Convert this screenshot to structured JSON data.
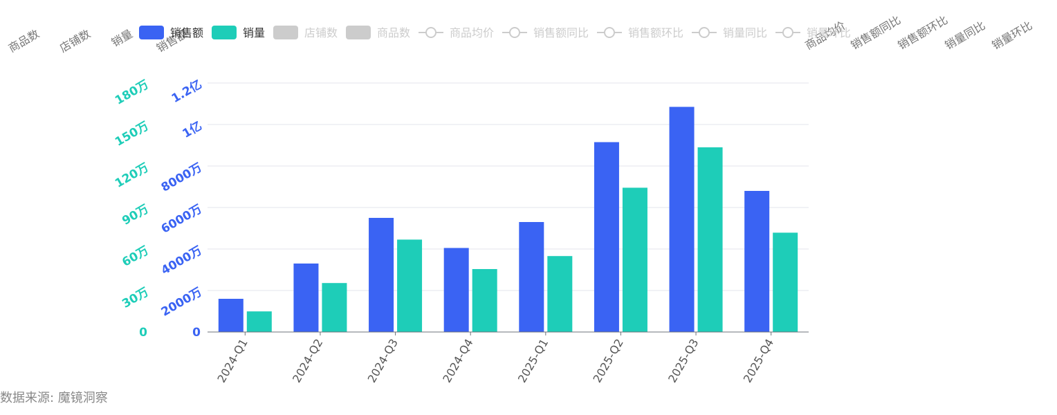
{
  "chart_data": {
    "type": "bar",
    "categories": [
      "2024-Q1",
      "2024-Q2",
      "2024-Q3",
      "2024-Q4",
      "2025-Q1",
      "2025-Q2",
      "2025-Q3",
      "2025-Q4"
    ],
    "series": [
      {
        "name": "销售额",
        "axis": "left-inner",
        "color": "#3a63f3",
        "values": [
          16000000,
          33000000,
          55000000,
          40500000,
          53000000,
          91500000,
          108500000,
          68000000
        ]
      },
      {
        "name": "销量",
        "axis": "left-outer",
        "color": "#1ecdb8",
        "values": [
          149000,
          354000,
          668000,
          455000,
          549000,
          1043000,
          1335000,
          718000
        ]
      }
    ],
    "legend": {
      "placement": "top",
      "active": [
        "销售额",
        "销量"
      ],
      "inactive": [
        {
          "name": "店铺数",
          "shape": "rect"
        },
        {
          "name": "商品数",
          "shape": "rect"
        },
        {
          "name": "商品均价",
          "shape": "line"
        },
        {
          "name": "销售额同比",
          "shape": "line"
        },
        {
          "name": "销售额环比",
          "shape": "line"
        },
        {
          "name": "销量同比",
          "shape": "line"
        },
        {
          "name": "销量环比",
          "shape": "line"
        }
      ],
      "inactive_color": "#cccccc"
    },
    "y_axes": [
      {
        "name": "销售额",
        "range": [
          0,
          120000000
        ],
        "ticks": [
          "0",
          "2000万",
          "4000万",
          "6000万",
          "8000万",
          "1亿",
          "1.2亿"
        ],
        "color": "#3a63f3"
      },
      {
        "name": "销量",
        "range": [
          0,
          1800000
        ],
        "ticks": [
          "0",
          "30万",
          "60万",
          "90万",
          "120万",
          "150万",
          "180万"
        ],
        "color": "#1ecdb8"
      }
    ],
    "axis_names_left": [
      "商品数",
      "店铺数",
      "销量",
      "销售额"
    ],
    "axis_names_right": [
      "商品均价",
      "销售额同比",
      "销售额环比",
      "销量同比",
      "销量环比"
    ],
    "grid": true
  },
  "source": "数据来源: 魔镜洞察"
}
